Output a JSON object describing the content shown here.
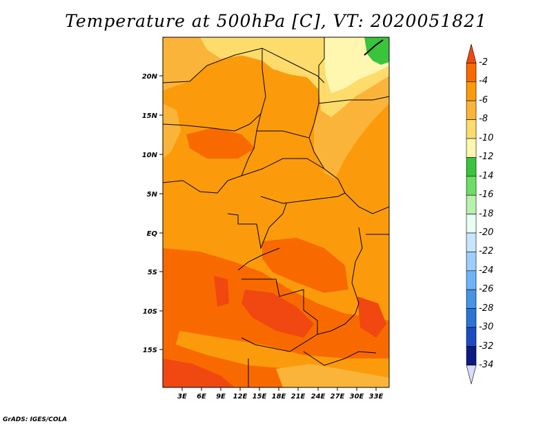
{
  "title": "Temperature at 500hPa [C], VT: 2020051821",
  "credit": "GrADS: IGES/COLA",
  "map": {
    "lat_labels": [
      "20N",
      "15N",
      "10N",
      "5N",
      "EQ",
      "5S",
      "10S",
      "15S"
    ],
    "lon_labels": [
      "3E",
      "6E",
      "9E",
      "12E",
      "15E",
      "18E",
      "21E",
      "24E",
      "27E",
      "30E",
      "33E"
    ]
  },
  "colorbar": {
    "labels": [
      "-2",
      "-4",
      "-6",
      "-8",
      "-10",
      "-12",
      "-14",
      "-16",
      "-18",
      "-20",
      "-22",
      "-24",
      "-26",
      "-28",
      "-30",
      "-32",
      "-34"
    ],
    "colors": [
      "#f04810",
      "#f86a00",
      "#fb9b0b",
      "#fbb43a",
      "#fddc6c",
      "#fff7b0",
      "#39c43c",
      "#6dde63",
      "#b7f2ad",
      "#e9fff1",
      "#c6e6ff",
      "#9ccfff",
      "#6eb3f6",
      "#4594e6",
      "#2a74d6",
      "#1b4cc1",
      "#0a1b82",
      "#d9dbff"
    ]
  }
}
